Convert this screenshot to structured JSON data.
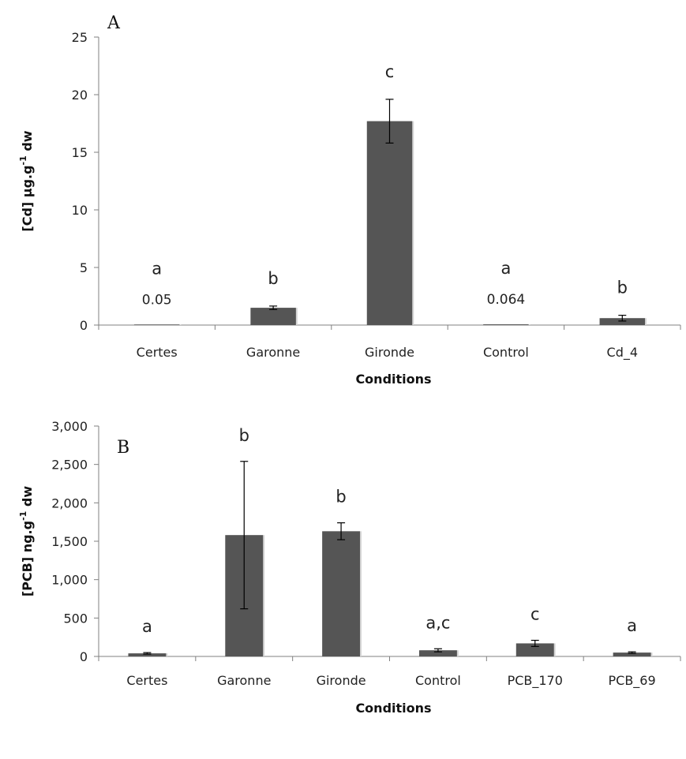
{
  "chart_data": [
    {
      "type": "bar",
      "panel_label": "A",
      "xlabel": "Conditions",
      "ylabel_main": "[Cd] µg.g",
      "ylabel_sup": "-1",
      "ylabel_unit": " dw",
      "ylim": [
        0,
        25
      ],
      "yticks": [
        "0",
        "5",
        "10",
        "15",
        "20",
        "25"
      ],
      "grid": false,
      "bar_color": "#555555",
      "categories": [
        "Certes",
        "Garonne",
        "Gironde",
        "Control",
        "Cd_4"
      ],
      "values": [
        0.05,
        1.5,
        17.7,
        0.064,
        0.6
      ],
      "errors": [
        0,
        0.15,
        1.9,
        0,
        0.25
      ],
      "significance": [
        "a",
        "b",
        "c",
        "a",
        "b"
      ],
      "data_labels": [
        "0.05",
        "",
        "",
        "0.064",
        ""
      ]
    },
    {
      "type": "bar",
      "panel_label": "B",
      "xlabel": "Conditions",
      "ylabel_main": "[PCB] ng.g",
      "ylabel_sup": "-1",
      "ylabel_unit": " dw",
      "ylim": [
        0,
        3000
      ],
      "yticks": [
        "0",
        "500",
        "1,000",
        "1,500",
        "2,000",
        "2,500",
        "3,000"
      ],
      "grid": false,
      "bar_color": "#555555",
      "categories": [
        "Certes",
        "Garonne",
        "Gironde",
        "Control",
        "PCB_170",
        "PCB_69"
      ],
      "values": [
        40,
        1580,
        1630,
        80,
        170,
        50
      ],
      "errors": [
        10,
        960,
        110,
        20,
        40,
        10
      ],
      "significance": [
        "a",
        "b",
        "b",
        "a,c",
        "c",
        "a"
      ],
      "data_labels": [
        "",
        "",
        "",
        "",
        "",
        ""
      ]
    }
  ]
}
